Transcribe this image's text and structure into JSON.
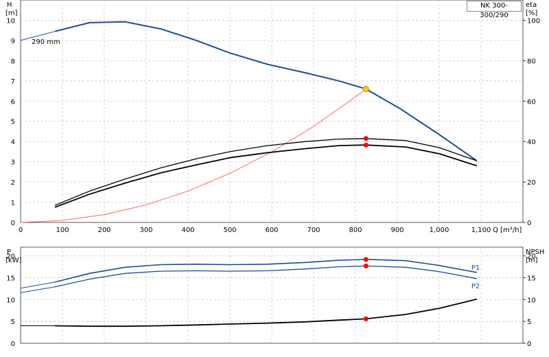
{
  "model_label": "NK 300-300/290",
  "chart_data": [
    {
      "type": "line",
      "title": "",
      "ylabel_left": [
        "H",
        "[m]"
      ],
      "ylabel_right": [
        "eta",
        "[%]"
      ],
      "xlabel": "Q [m³/h]",
      "xlim": [
        0,
        1200
      ],
      "ylim": [
        0,
        11
      ],
      "ylim_right": [
        0,
        110
      ],
      "x_ticks": [
        0,
        100,
        200,
        300,
        400,
        500,
        600,
        700,
        800,
        900,
        1000,
        1100
      ],
      "x_tick_labels": [
        "0",
        "100",
        "200",
        "300",
        "400",
        "500",
        "600",
        "700",
        "800",
        "900",
        "1,000",
        "1,100"
      ],
      "y_ticks": [
        0,
        1,
        2,
        3,
        4,
        5,
        6,
        7,
        8,
        9,
        10
      ],
      "y_tick_labels": [
        "0",
        "1",
        "2",
        "3",
        "4",
        "5",
        "6",
        "7",
        "8",
        "9",
        "10"
      ],
      "y_right_ticks": [
        0,
        20,
        40,
        60,
        80,
        100
      ],
      "y_right_tick_labels": [
        "0",
        "20",
        "40",
        "60",
        "80",
        "100"
      ],
      "grid": true,
      "annotations": [
        "290 mm"
      ],
      "series": [
        {
          "kind": "head_extension",
          "color": "#1a4d8f",
          "x": [
            0,
            82
          ],
          "y": [
            9.0,
            9.45
          ]
        },
        {
          "kind": "head",
          "color": "#1a4d8f",
          "x": [
            82,
            165,
            250,
            335,
            420,
            500,
            590,
            680,
            760,
            825,
            905,
            1000,
            1090
          ],
          "y": [
            9.45,
            9.88,
            9.92,
            9.57,
            9.0,
            8.38,
            7.82,
            7.4,
            7.0,
            6.6,
            5.65,
            4.35,
            3.05
          ]
        },
        {
          "kind": "system",
          "color": "#ff5a5a",
          "x": [
            0,
            100,
            200,
            300,
            400,
            500,
            600,
            700,
            800,
            825
          ],
          "y": [
            0,
            0.1,
            0.39,
            0.87,
            1.55,
            2.43,
            3.49,
            4.75,
            6.21,
            6.6
          ]
        },
        {
          "kind": "eta_upper",
          "color": "#000000",
          "axis": "right",
          "x": [
            82,
            165,
            250,
            335,
            420,
            500,
            590,
            680,
            760,
            825,
            920,
            1000,
            1090
          ],
          "y": [
            8.5,
            15.5,
            21.5,
            27,
            31.5,
            35,
            38,
            40,
            41.2,
            41.5,
            40.5,
            37,
            30.5
          ]
        },
        {
          "kind": "eta_lower",
          "color": "#000000",
          "axis": "right",
          "x": [
            82,
            165,
            250,
            335,
            420,
            500,
            590,
            680,
            760,
            825,
            920,
            1000,
            1090
          ],
          "y": [
            7.5,
            14,
            19.5,
            24.5,
            28.5,
            32,
            34.5,
            36.5,
            38,
            38.3,
            37.3,
            34,
            28
          ]
        }
      ],
      "points": [
        {
          "x": 825,
          "y": 6.6,
          "color": "#ffcc00",
          "edge": "#d08000"
        },
        {
          "x": 825,
          "y": 4.15,
          "color": "#ff0000"
        },
        {
          "x": 825,
          "y": 3.83,
          "color": "#ff0000"
        }
      ]
    },
    {
      "type": "line",
      "title": "",
      "ylabel_left": [
        "P",
        "[kW]"
      ],
      "ylabel_right": [
        "NPSH",
        "[m]"
      ],
      "xlim": [
        0,
        1200
      ],
      "ylim": [
        0,
        22
      ],
      "y_ticks": [
        0,
        5,
        10,
        15,
        20
      ],
      "y_tick_labels": [
        "0",
        "5",
        "10",
        "15",
        "20"
      ],
      "y_right_ticks": [
        0,
        5,
        10,
        15,
        20
      ],
      "y_right_tick_labels": [
        "0",
        "5",
        "10",
        "15",
        "20"
      ],
      "grid": true,
      "series": [
        {
          "kind": "p1_extension",
          "color": "#1a4d8f",
          "x": [
            0,
            82
          ],
          "y": [
            12.6,
            14.0
          ]
        },
        {
          "name": "P1",
          "kind": "p1",
          "color": "#1a4d8f",
          "x": [
            82,
            165,
            250,
            335,
            420,
            500,
            590,
            680,
            760,
            825,
            920,
            1000,
            1090
          ],
          "y": [
            14.0,
            16.0,
            17.4,
            18.0,
            18.1,
            18.0,
            18.1,
            18.5,
            19.0,
            19.2,
            18.9,
            17.8,
            16.2
          ]
        },
        {
          "kind": "p2_extension",
          "color": "#1a4d8f",
          "x": [
            0,
            82
          ],
          "y": [
            11.6,
            12.9
          ]
        },
        {
          "name": "P2",
          "kind": "p2",
          "color": "#1a4d8f",
          "x": [
            82,
            165,
            250,
            335,
            420,
            500,
            590,
            680,
            760,
            825,
            920,
            1000,
            1090
          ],
          "y": [
            12.9,
            14.7,
            16.0,
            16.5,
            16.6,
            16.5,
            16.6,
            17.0,
            17.5,
            17.7,
            17.4,
            16.4,
            14.8
          ]
        },
        {
          "kind": "npsh_extension",
          "color": "#000000",
          "x": [
            0,
            82
          ],
          "y": [
            4.0,
            4.0
          ]
        },
        {
          "kind": "npsh",
          "color": "#000000",
          "axis": "right",
          "x": [
            82,
            165,
            250,
            335,
            420,
            500,
            590,
            680,
            760,
            825,
            920,
            1000,
            1090
          ],
          "y": [
            4.0,
            3.9,
            3.9,
            4.0,
            4.2,
            4.4,
            4.6,
            4.9,
            5.3,
            5.6,
            6.6,
            8.0,
            10.1
          ]
        }
      ],
      "points": [
        {
          "x": 825,
          "y": 19.2,
          "color": "#ff0000"
        },
        {
          "x": 825,
          "y": 17.7,
          "color": "#ff0000"
        },
        {
          "x": 825,
          "y": 5.6,
          "color": "#ff0000"
        }
      ]
    }
  ]
}
